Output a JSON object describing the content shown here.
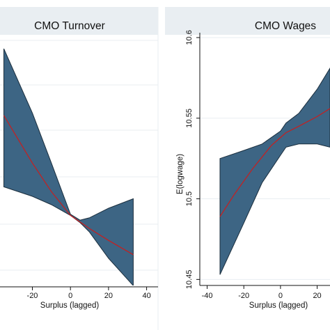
{
  "chart_data": [
    {
      "type": "line",
      "title": "CMO Turnover",
      "xlabel": "Surplus (lagged)",
      "ylabel": "",
      "xticks": [
        -20,
        0,
        20,
        40
      ],
      "xlim": [
        -37,
        46
      ],
      "ylim": [
        0,
        1
      ],
      "band_color": "#3d6584",
      "line_color": "#c81e1e",
      "series": [
        {
          "x": [
            -35,
            -20,
            -10,
            0,
            10,
            20,
            33
          ],
          "y": [
            0.72,
            0.52,
            0.4,
            0.3,
            0.245,
            0.195,
            0.135
          ]
        }
      ],
      "ci_band": {
        "x": [
          -35,
          -20,
          -10,
          0,
          5,
          10,
          20,
          33
        ],
        "lower": [
          0.42,
          0.38,
          0.345,
          0.3,
          0.27,
          0.23,
          0.12,
          0.005
        ],
        "upper": [
          1.0,
          0.73,
          0.52,
          0.305,
          0.28,
          0.29,
          0.33,
          0.37
        ]
      }
    },
    {
      "type": "line",
      "title": "CMO Wages",
      "xlabel": "Surplus (lagged)",
      "ylabel": "E(logwage)",
      "xticks": [
        -40,
        -20,
        0,
        20
      ],
      "yticks": [
        "10.45",
        "10.5",
        "10.55",
        "10.6"
      ],
      "ytick_values": [
        10.45,
        10.5,
        10.55,
        10.6
      ],
      "xlim": [
        -44,
        27
      ],
      "ylim": [
        10.448,
        10.603
      ],
      "band_color": "#3d6584",
      "line_color": "#c81e1e",
      "series": [
        {
          "x": [
            -33,
            -25,
            -15,
            -5,
            0,
            3,
            10,
            20,
            27
          ],
          "y": [
            10.489,
            10.503,
            10.519,
            10.533,
            10.538,
            10.541,
            10.545,
            10.551,
            10.556
          ]
        }
      ],
      "ci_band": {
        "x": [
          -33,
          -20,
          -10,
          0,
          3,
          10,
          20,
          27
        ],
        "lower": [
          10.453,
          10.485,
          10.51,
          10.527,
          10.532,
          10.534,
          10.534,
          10.532
        ],
        "upper": [
          10.525,
          10.53,
          10.534,
          10.542,
          10.547,
          10.553,
          10.568,
          10.581
        ]
      }
    }
  ]
}
